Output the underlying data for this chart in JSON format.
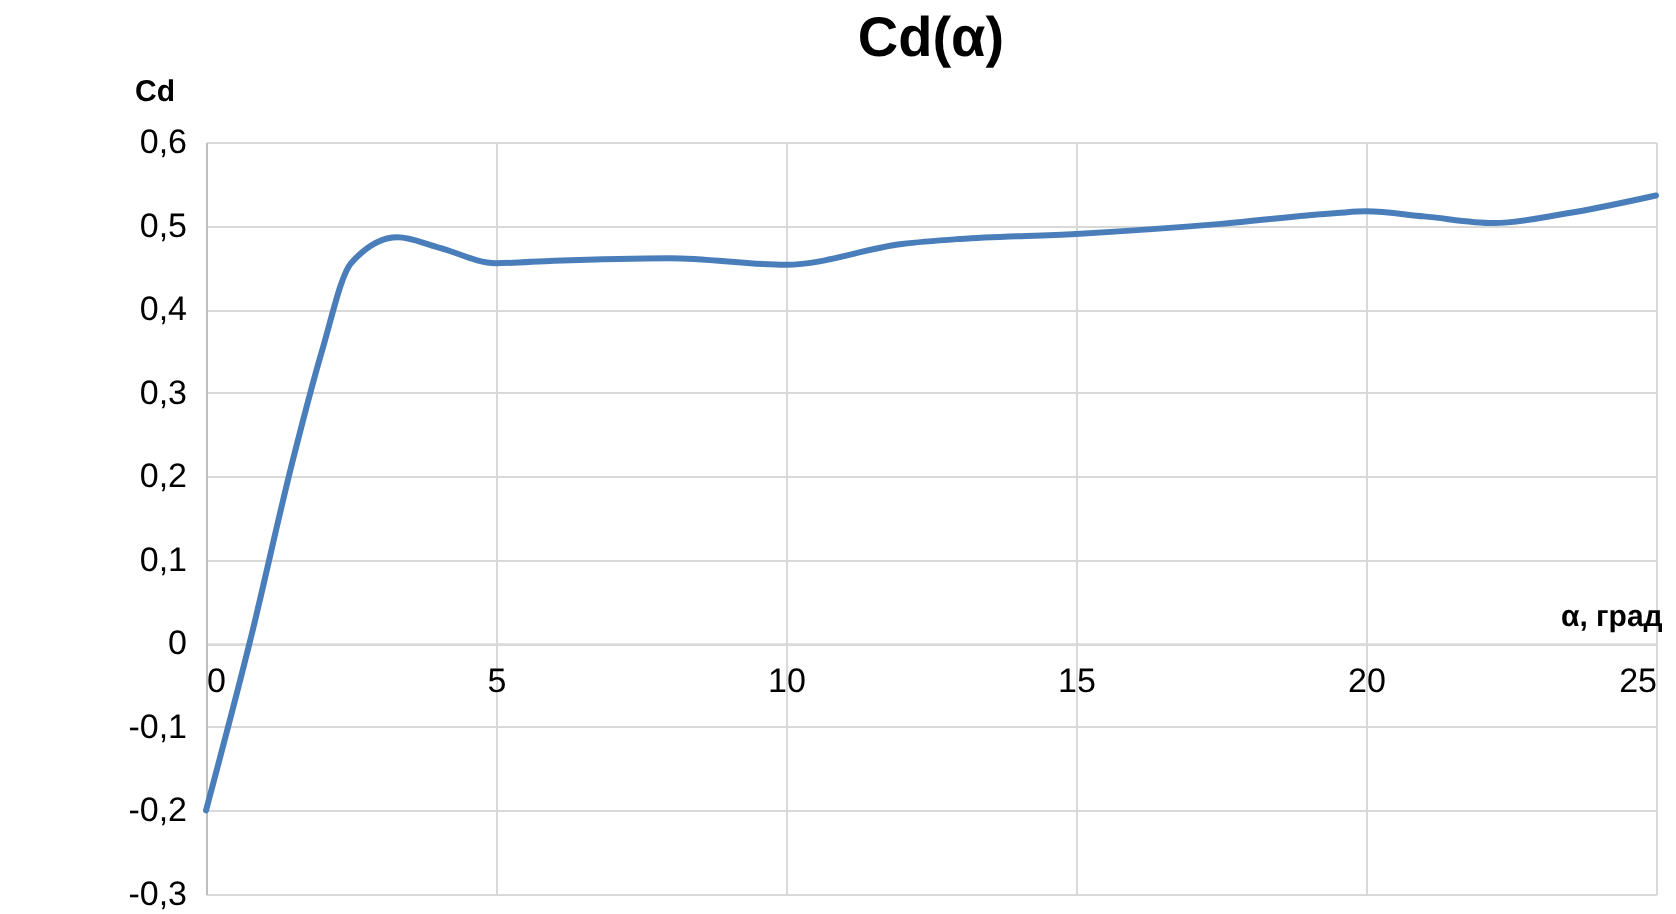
{
  "chart_data": {
    "type": "line",
    "title": "Cd(α)",
    "xlabel": "α, град",
    "ylabel": "Cd",
    "x": [
      0,
      0.75,
      1.5,
      2,
      2.5,
      3.3,
      4,
      5,
      6,
      8,
      10,
      12,
      13,
      15,
      17.5,
      19.5,
      20,
      21,
      22.2,
      23.5,
      25
    ],
    "series": [
      {
        "color": "#4a7ebb",
        "values": [
          -0.2,
          0,
          0.22,
          0.35,
          0.455,
          0.486,
          0.474,
          0.455,
          0.458,
          0.461,
          0.453,
          0.478,
          0.484,
          0.49,
          0.502,
          0.515,
          0.517,
          0.511,
          0.503,
          0.515,
          0.536
        ]
      }
    ],
    "xlim": [
      0,
      25
    ],
    "xticks": [
      0,
      5,
      10,
      15,
      20,
      25
    ],
    "ylim": [
      -0.3,
      0.6
    ],
    "yticks": [
      {
        "value": -0.3,
        "label": "-0,3"
      },
      {
        "value": -0.2,
        "label": "-0,2"
      },
      {
        "value": -0.1,
        "label": "-0,1"
      },
      {
        "value": 0,
        "label": "0"
      },
      {
        "value": 0.1,
        "label": "0,1"
      },
      {
        "value": 0.2,
        "label": "0,2"
      },
      {
        "value": 0.3,
        "label": "0,3"
      },
      {
        "value": 0.4,
        "label": "0,4"
      },
      {
        "value": 0.5,
        "label": "0,5"
      },
      {
        "value": 0.6,
        "label": "0,6"
      }
    ],
    "grid": true,
    "marker": "none",
    "line_style": "solid"
  }
}
